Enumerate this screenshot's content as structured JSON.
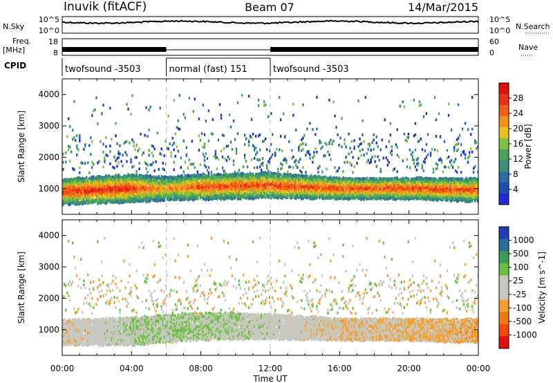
{
  "header": {
    "station": "Inuvik (fitACF)",
    "beam": "Beam 07",
    "date": "14/Mar/2015"
  },
  "top_panels": {
    "nsky_label": "N.Sky",
    "nsearch_label": "N.Search",
    "freq_label": "Freq.",
    "freq_unit": "[MHz]",
    "nave_label": "Nave",
    "cpid_label": "CPID",
    "nsky_ticks": [
      "10^5",
      "10^0"
    ],
    "nsearch_ticks": [
      "10^5",
      "10^0"
    ],
    "freq_ticks": [
      "18",
      "8"
    ],
    "nave_ticks": [
      "60",
      "0"
    ],
    "cpid_segments": [
      {
        "label": "twofsound -3503",
        "start": 0,
        "end": 6
      },
      {
        "label": "normal (fast) 151",
        "start": 6,
        "end": 12
      },
      {
        "label": "twofsound -3503",
        "start": 12,
        "end": 24
      }
    ]
  },
  "colors": {
    "power_scale": [
      "#1f2bd6",
      "#1f4fae",
      "#2a6fa0",
      "#3a8f78",
      "#4aa55a",
      "#80c040",
      "#e6c020",
      "#f09020",
      "#f06018",
      "#e83018",
      "#e01010"
    ],
    "velocity_scale": [
      "#e01010",
      "#f04a10",
      "#f07818",
      "#f4a030",
      "#c8c8c0",
      "#c8c8c0",
      "#6cc040",
      "#3a9a58",
      "#2a6fa0",
      "#1f3fb6"
    ]
  },
  "chart_data": [
    {
      "type": "heatmap",
      "name_panel": "power",
      "title": "",
      "xlabel": "",
      "ylabel": "Slant Range [km]",
      "colorbar_label": "Power [dB]",
      "colorbar_ticks": [
        "28",
        "24",
        "20",
        "16",
        "12",
        "8",
        "4"
      ],
      "colorbar_range": [
        0,
        32
      ],
      "xlim": [
        0,
        24
      ],
      "ylim": [
        180,
        4500
      ],
      "x_ticks": [
        "00:00",
        "04:00",
        "08:00",
        "12:00",
        "16:00",
        "20:00",
        "00:00"
      ],
      "y_ticks": [
        "1000",
        "2000",
        "3000",
        "4000"
      ],
      "scatter_band": [
        {
          "x": 0,
          "center": 900,
          "halfwidth": 300,
          "peak_db": 30
        },
        {
          "x": 4,
          "center": 1000,
          "halfwidth": 330,
          "peak_db": 30
        },
        {
          "x": 6,
          "center": 1000,
          "halfwidth": 280,
          "peak_db": 22
        },
        {
          "x": 8,
          "center": 1050,
          "halfwidth": 300,
          "peak_db": 28
        },
        {
          "x": 12,
          "center": 1100,
          "halfwidth": 300,
          "peak_db": 28
        },
        {
          "x": 16,
          "center": 1000,
          "halfwidth": 250,
          "peak_db": 28
        },
        {
          "x": 20,
          "center": 1000,
          "halfwidth": 250,
          "peak_db": 28
        },
        {
          "x": 24,
          "center": 950,
          "halfwidth": 280,
          "peak_db": 28
        }
      ]
    },
    {
      "type": "heatmap",
      "name_panel": "velocity",
      "title": "",
      "xlabel": "Time UT",
      "ylabel": "Slant Range [km]",
      "colorbar_label": "Velocity [m s^-1]",
      "colorbar_ticks": [
        "1000",
        "500",
        "100",
        "25",
        "-25",
        "-100",
        "-500",
        "-1000"
      ],
      "colorbar_range": [
        -1000,
        1000
      ],
      "xlim": [
        0,
        24
      ],
      "ylim": [
        180,
        4500
      ],
      "x_ticks": [
        "00:00",
        "04:00",
        "08:00",
        "12:00",
        "16:00",
        "20:00",
        "00:00"
      ],
      "y_ticks": [
        "1000",
        "2000",
        "3000",
        "4000"
      ],
      "scatter_band": [
        {
          "x": 0,
          "center": 900,
          "halfwidth": 300,
          "velocity": -150
        },
        {
          "x": 4,
          "center": 950,
          "halfwidth": 330,
          "velocity": 150
        },
        {
          "x": 8,
          "center": 1100,
          "halfwidth": 320,
          "velocity": 180
        },
        {
          "x": 12,
          "center": 1100,
          "halfwidth": 300,
          "velocity": 60
        },
        {
          "x": 16,
          "center": 1000,
          "halfwidth": 260,
          "velocity": -150
        },
        {
          "x": 20,
          "center": 1000,
          "halfwidth": 260,
          "velocity": -200
        },
        {
          "x": 24,
          "center": 950,
          "halfwidth": 280,
          "velocity": -300
        }
      ]
    }
  ]
}
